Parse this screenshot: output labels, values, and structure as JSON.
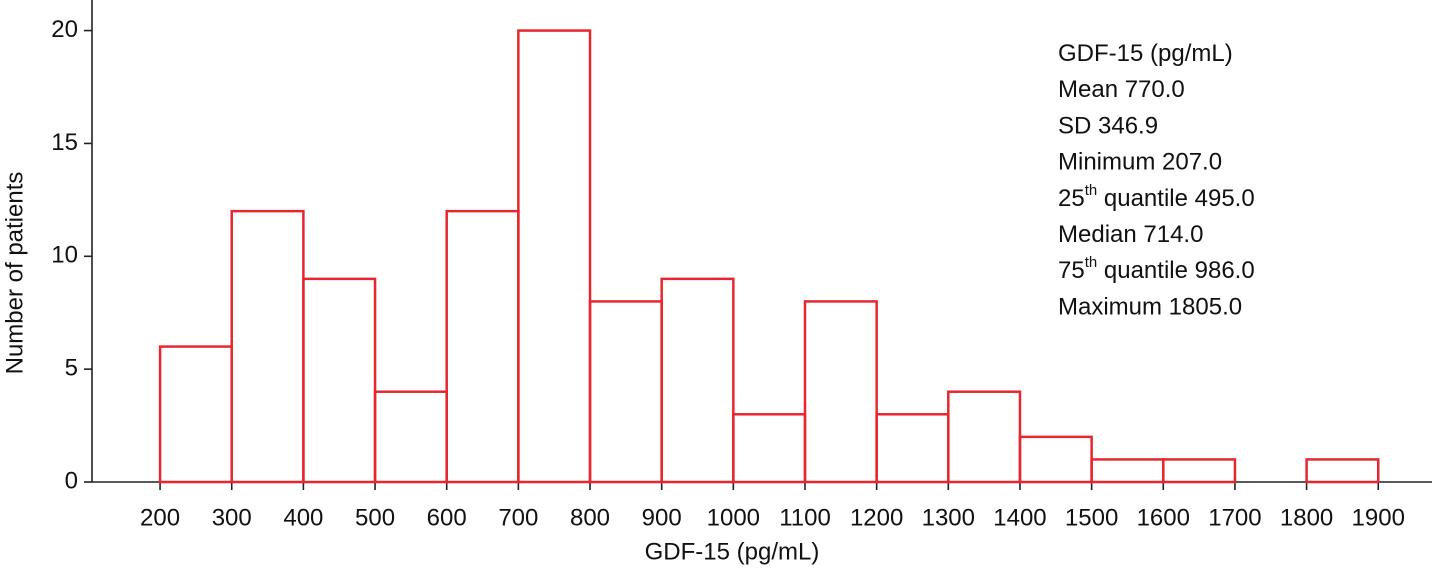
{
  "chart_data": {
    "type": "histogram",
    "x_label": "GDF-15 (pg/mL)",
    "y_label": "Number of patients",
    "bins": [
      200,
      300,
      400,
      500,
      600,
      700,
      800,
      900,
      1000,
      1100,
      1200,
      1300,
      1400,
      1500,
      1600,
      1700,
      1800,
      1900
    ],
    "counts": [
      6,
      12,
      9,
      4,
      12,
      20,
      8,
      9,
      3,
      8,
      3,
      4,
      2,
      1,
      1,
      0,
      1
    ],
    "color": "#e8262f",
    "xlim": [
      105,
      1975
    ],
    "ylim": [
      0,
      21
    ],
    "xticks": [
      200,
      300,
      400,
      500,
      600,
      700,
      800,
      900,
      1000,
      1100,
      1200,
      1300,
      1400,
      1500,
      1600,
      1700,
      1800,
      1900
    ],
    "yticks": [
      0,
      5,
      10,
      15,
      20
    ],
    "annotations": [
      {
        "text": "GDF-15 (pg/mL)"
      },
      {
        "text": "Mean 770.0"
      },
      {
        "text": "SD 346.9"
      },
      {
        "text": "Minimum 207.0"
      },
      {
        "text": "25",
        "sup": "th",
        "rest": " quantile 495.0"
      },
      {
        "text": "Median 714.0"
      },
      {
        "text": "75",
        "sup": "th",
        "rest": " quantile 986.0"
      },
      {
        "text": "Maximum 1805.0"
      }
    ]
  }
}
